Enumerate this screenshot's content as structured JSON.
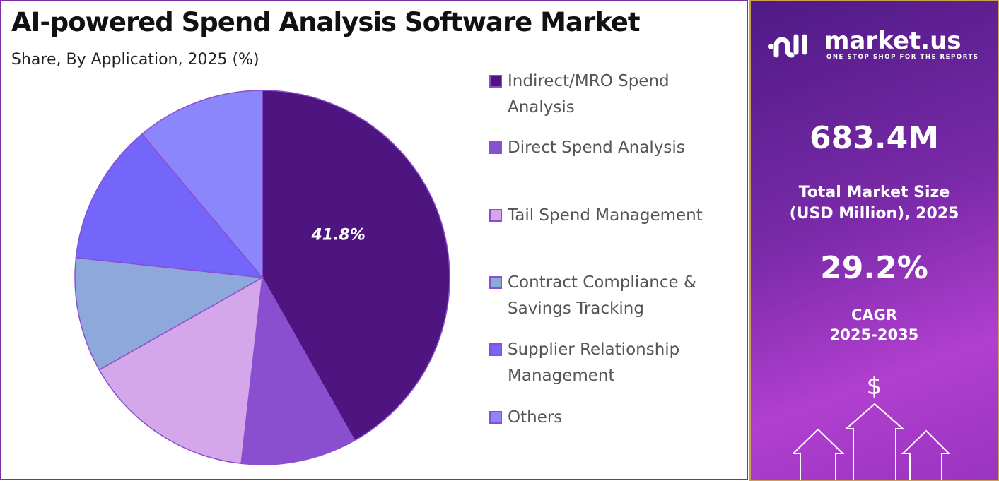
{
  "title": "AI-powered Spend Analysis Software Market",
  "subtitle": "Share, By Application, 2025 (%)",
  "chart_data": {
    "type": "pie",
    "title": "AI-powered Spend Analysis Software Market",
    "subtitle": "Share, By Application, 2025 (%)",
    "categories": [
      "Indirect/MRO Spend Analysis",
      "Direct Spend Analysis",
      "Tail Spend Management",
      "Contract Compliance & Savings Tracking",
      "Supplier Relationship Management",
      "Others"
    ],
    "values": [
      41.8,
      10.0,
      15.0,
      9.9,
      12.2,
      11.1
    ],
    "colors": [
      "#4e1580",
      "#8a4fcf",
      "#d4a6ea",
      "#8fa8db",
      "#7466fb",
      "#8c86fc"
    ],
    "data_labels": [
      "41.8%",
      "",
      "",
      "",
      "",
      ""
    ],
    "legend_position": "right"
  },
  "legend": [
    {
      "line1": "Indirect/MRO Spend",
      "line2": "Analysis"
    },
    {
      "line1": "Direct Spend Analysis",
      "line2": ""
    },
    {
      "line1": "Tail Spend Management",
      "line2": ""
    },
    {
      "line1": "Contract Compliance &",
      "line2": "Savings Tracking"
    },
    {
      "line1": "Supplier Relationship",
      "line2": "Management"
    },
    {
      "line1": "Others",
      "line2": ""
    }
  ],
  "panel": {
    "logo_text": "market.us",
    "logo_tagline": "ONE STOP SHOP FOR THE REPORTS",
    "market_size": "683.4M",
    "market_size_label_1": "Total Market Size",
    "market_size_label_2": "(USD Million), 2025",
    "cagr": "29.2%",
    "cagr_label_1": "CAGR",
    "cagr_label_2": "2025-2035",
    "dollar_symbol": "$"
  }
}
